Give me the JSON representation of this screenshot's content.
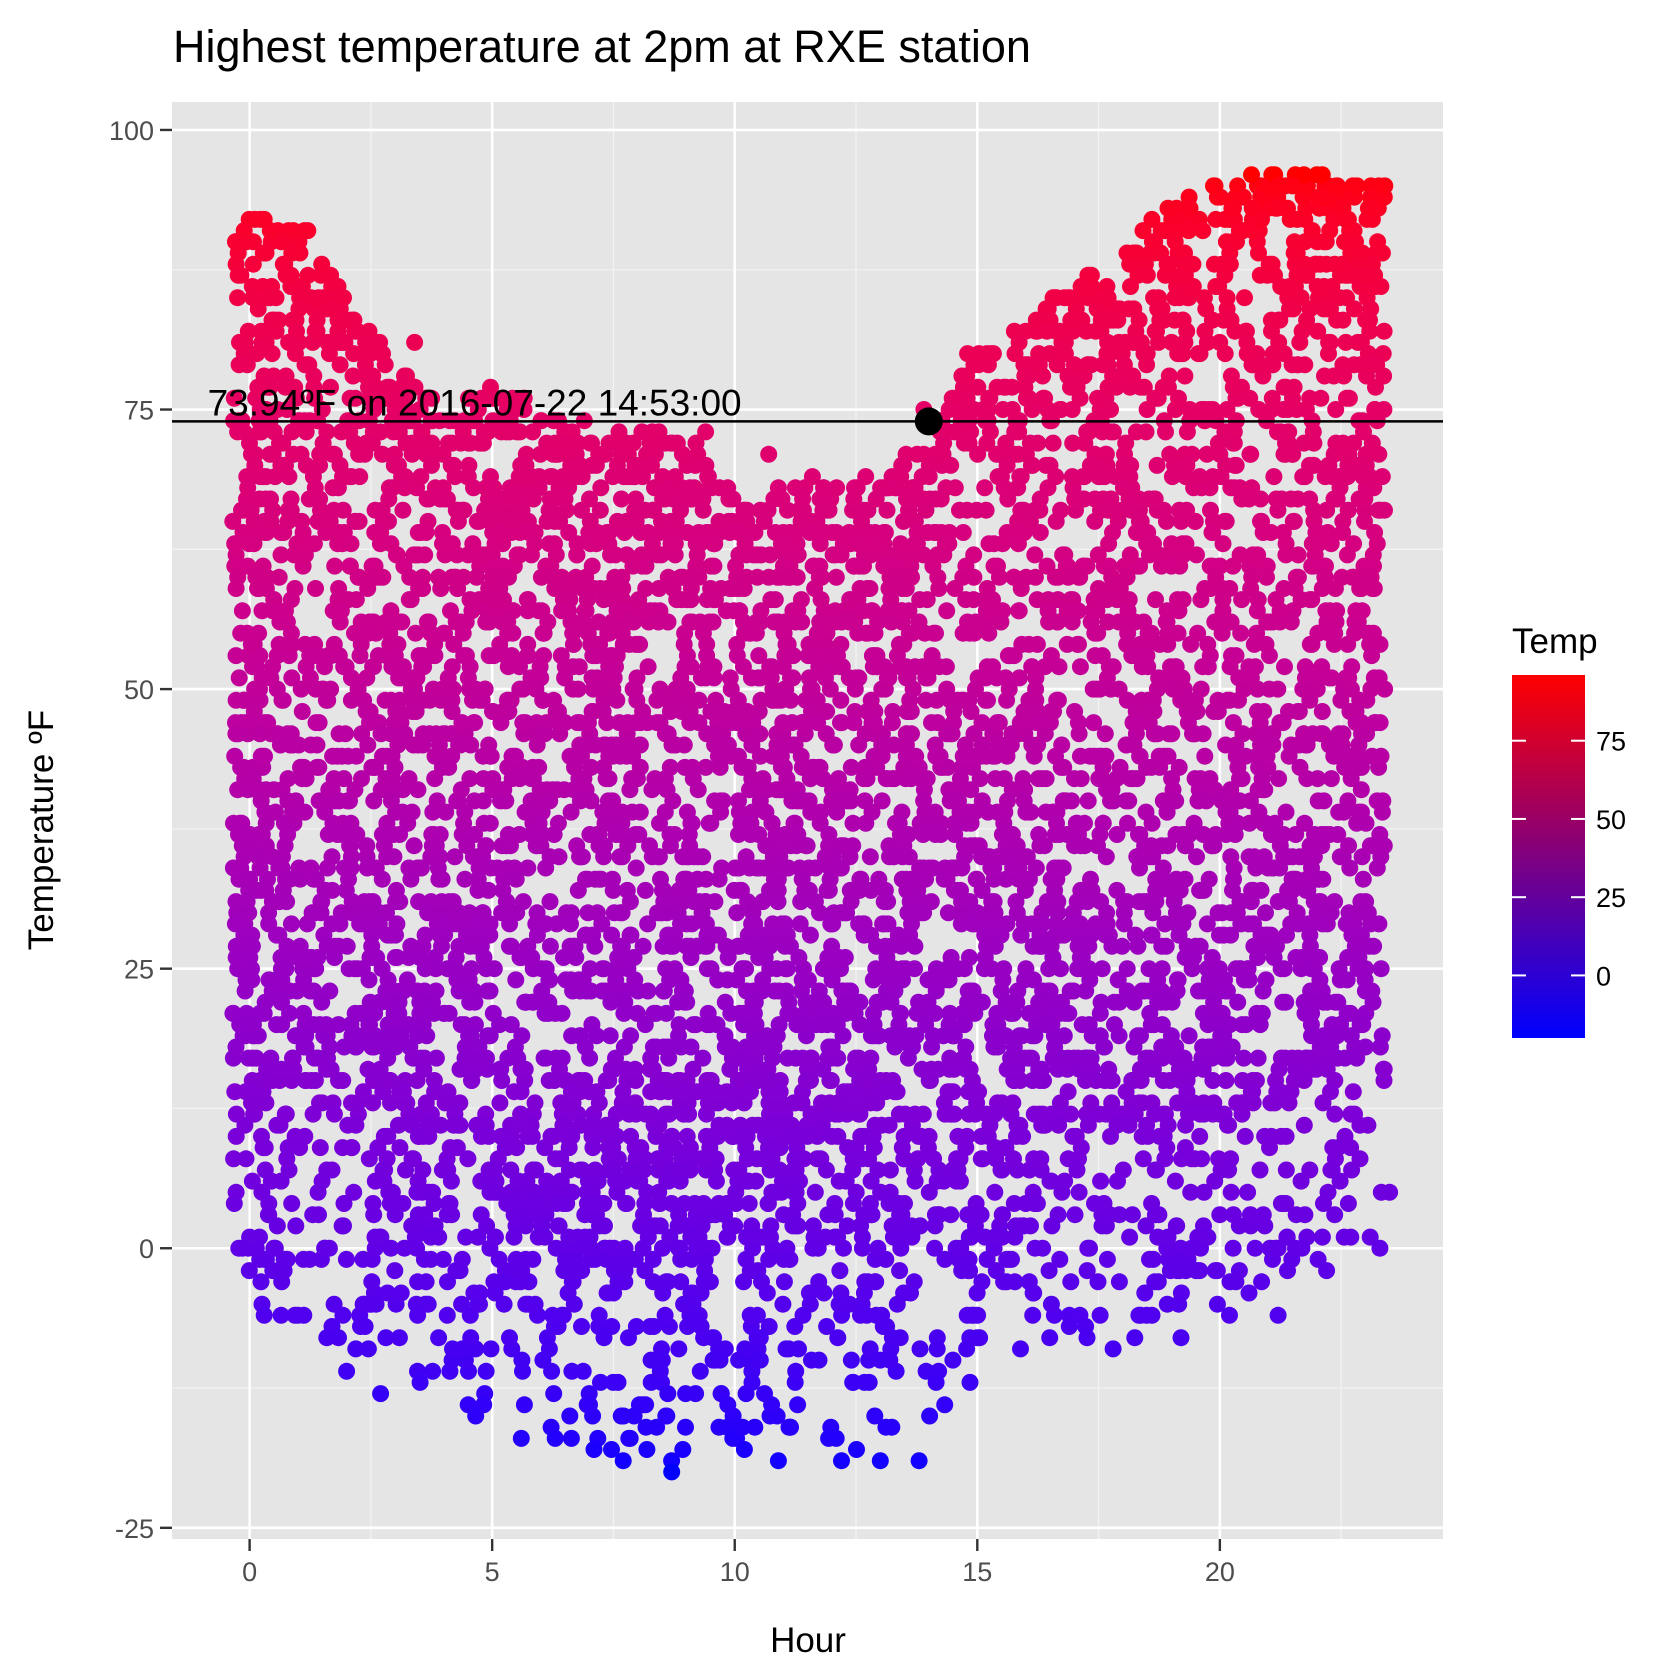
{
  "chart_data": {
    "type": "scatter",
    "title": "Highest temperature at 2pm at RXE station",
    "xlabel": "Hour",
    "ylabel": "Temperature ºF",
    "xlim": [
      -1.6,
      24.6
    ],
    "ylim": [
      -26,
      102.5
    ],
    "x_ticks": [
      0,
      5,
      10,
      15,
      20
    ],
    "y_ticks": [
      -25,
      0,
      25,
      50,
      75,
      100
    ],
    "x_minor": [
      2.5,
      7.5,
      12.5,
      17.5,
      22.5
    ],
    "y_minor": [
      -12.5,
      12.5,
      37.5,
      62.5,
      87.5
    ],
    "grid": true,
    "legend": {
      "title": "Temp",
      "placement": "right",
      "ticks": [
        0,
        25,
        50,
        75
      ],
      "range": [
        -20,
        96
      ],
      "low_color": "#0000ff",
      "high_color": "#ff0000"
    },
    "hline": 73.94,
    "highlight": {
      "x": 14,
      "y": 73.94
    },
    "annotation": {
      "text": "73.94ºF on 2016-07-22 14:53:00",
      "x": 0,
      "y": 73.94
    },
    "envelope": {
      "hours": [
        0,
        1,
        2,
        3,
        4,
        5,
        6,
        7,
        8,
        9,
        10,
        11,
        12,
        13,
        14,
        15,
        16,
        17,
        18,
        19,
        20,
        21,
        22,
        23
      ],
      "max": [
        92,
        92,
        85,
        79,
        77,
        77,
        75,
        72,
        74,
        73,
        67,
        68,
        69,
        68,
        74,
        80,
        83,
        86,
        89,
        94,
        95,
        96,
        96,
        95
      ],
      "min": [
        -6,
        -8,
        -11,
        -13,
        -15,
        -17,
        -17,
        -18,
        -20,
        -19,
        -18,
        -18,
        -18,
        -18,
        -17,
        -14,
        -12,
        -9,
        -9,
        -8,
        -6,
        -6,
        -2,
        0
      ]
    },
    "points": [
      {
        "x": 22.0,
        "y": 96
      },
      {
        "x": 21.2,
        "y": 95
      },
      {
        "x": 21.5,
        "y": 95
      },
      {
        "x": 19.9,
        "y": 95
      },
      {
        "x": 23.4,
        "y": 95
      },
      {
        "x": 22.4,
        "y": 95
      },
      {
        "x": 0.3,
        "y": 92
      },
      {
        "x": 1.2,
        "y": 91
      },
      {
        "x": 3.4,
        "y": 81
      },
      {
        "x": 14.8,
        "y": 80
      },
      {
        "x": 13.9,
        "y": 75
      },
      {
        "x": 6.9,
        "y": 74
      },
      {
        "x": 9.4,
        "y": 73
      },
      {
        "x": 8.3,
        "y": 73
      },
      {
        "x": 10.7,
        "y": 71
      },
      {
        "x": 11.6,
        "y": 69
      },
      {
        "x": 12.7,
        "y": 69
      },
      {
        "x": 10.9,
        "y": 68
      },
      {
        "x": 8.7,
        "y": -20
      },
      {
        "x": 7.7,
        "y": -19
      },
      {
        "x": 10.9,
        "y": -19
      },
      {
        "x": 12.2,
        "y": -19
      },
      {
        "x": 13.0,
        "y": -19
      },
      {
        "x": 13.8,
        "y": -19
      },
      {
        "x": 10.2,
        "y": -18
      },
      {
        "x": 7.1,
        "y": -18
      },
      {
        "x": 8.6,
        "y": -15
      },
      {
        "x": 19.2,
        "y": -8
      },
      {
        "x": 20.2,
        "y": -6
      },
      {
        "x": 21.2,
        "y": -6
      },
      {
        "x": 20.6,
        "y": -4
      },
      {
        "x": 22.2,
        "y": -2
      },
      {
        "x": 17.8,
        "y": -9
      },
      {
        "x": 0.3,
        "y": -6
      },
      {
        "x": 1.0,
        "y": -6
      },
      {
        "x": 2.0,
        "y": -11
      },
      {
        "x": 2.7,
        "y": -13
      },
      {
        "x": 5.6,
        "y": -17
      },
      {
        "x": 6.3,
        "y": -17
      },
      {
        "x": 23.1,
        "y": 1
      },
      {
        "x": 23.3,
        "y": 0
      },
      {
        "x": 23.5,
        "y": 5
      },
      {
        "x": 0.0,
        "y": 1
      },
      {
        "x": 0.5,
        "y": 0
      }
    ]
  }
}
